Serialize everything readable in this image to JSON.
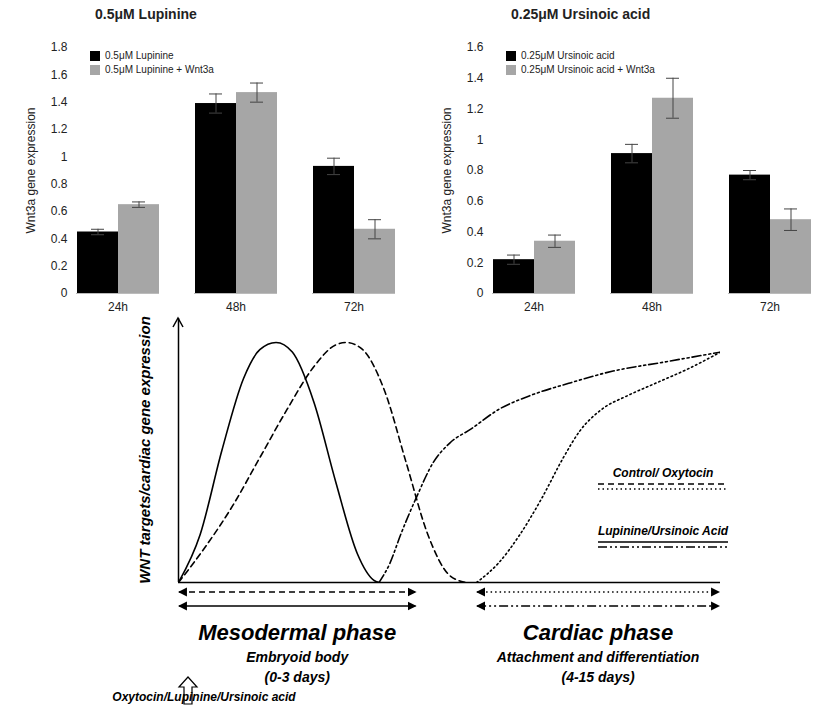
{
  "chart_data": [
    {
      "type": "bar",
      "title": "0.5μM Lupinine",
      "y_label": "Wnt3a gene expression",
      "categories": [
        "24h",
        "48h",
        "72h"
      ],
      "series": [
        {
          "name": "0.5μM Lupinine",
          "color": "#000000",
          "values": [
            0.45,
            1.39,
            0.93
          ],
          "errors": [
            0.02,
            0.07,
            0.06
          ]
        },
        {
          "name": "0.5μM Lupinine + Wnt3a",
          "color": "#a6a6a6",
          "values": [
            0.65,
            1.47,
            0.47
          ],
          "errors": [
            0.02,
            0.07,
            0.07
          ]
        }
      ],
      "ylim": [
        0,
        1.8
      ],
      "yticks": [
        0,
        0.2,
        0.4,
        0.6,
        0.8,
        1,
        1.2,
        1.4,
        1.6,
        1.8
      ],
      "grid": false,
      "legend": "top-left"
    },
    {
      "type": "bar",
      "title": "0.25μM Ursinoic acid",
      "y_label": "Wnt3a gene expression",
      "categories": [
        "24h",
        "48h",
        "72h"
      ],
      "series": [
        {
          "name": "0.25μM Ursinoic acid",
          "color": "#000000",
          "values": [
            0.22,
            0.91,
            0.77
          ],
          "errors": [
            0.03,
            0.06,
            0.03
          ]
        },
        {
          "name": "0.25μM Ursinoic acid + Wnt3a",
          "color": "#a6a6a6",
          "values": [
            0.34,
            1.27,
            0.48
          ],
          "errors": [
            0.04,
            0.13,
            0.07
          ]
        }
      ],
      "ylim": [
        0,
        1.6
      ],
      "yticks": [
        0,
        0.2,
        0.4,
        0.6,
        0.8,
        1,
        1.2,
        1.4,
        1.6
      ],
      "grid": false,
      "legend": "top-left"
    },
    {
      "type": "line",
      "y_label": "WNT targets/cardiac gene expression",
      "tick_labels": false,
      "grid": false,
      "legend": "bottom-right",
      "xlim": [
        0,
        100
      ],
      "ylim": [
        0,
        110
      ],
      "series": [
        {
          "name": "Control/ Oxytocin",
          "color": "#000000",
          "line_style": "dashed",
          "x": [
            0,
            5,
            10,
            15,
            20,
            25,
            29,
            31,
            34,
            38,
            42,
            46,
            50,
            53
          ],
          "values": [
            0,
            15,
            32,
            52,
            72,
            90,
            99,
            100,
            97,
            80,
            50,
            20,
            3,
            0
          ]
        },
        {
          "name": "Lupinine/Ursinoic Acid",
          "color": "#000000",
          "line_style": "solid",
          "x": [
            0,
            4,
            8,
            12,
            15,
            18,
            21,
            25,
            29,
            33,
            36,
            37
          ],
          "values": [
            0,
            20,
            55,
            85,
            97,
            100,
            96,
            75,
            42,
            12,
            1,
            0
          ]
        },
        {
          "name": "Control/ Oxytocin",
          "color": "#000000",
          "line_style": "dotted",
          "x": [
            55,
            59,
            63,
            67,
            71,
            74,
            78,
            83,
            88,
            94,
            100
          ],
          "values": [
            0,
            8,
            20,
            35,
            52,
            63,
            72,
            78,
            83,
            89,
            96
          ]
        },
        {
          "name": "Lupinine/Ursinoic Acid",
          "color": "#000000",
          "line_style": "dashdotdot",
          "x": [
            37,
            39,
            41,
            44,
            47,
            50,
            54,
            59,
            65,
            72,
            80,
            90,
            100
          ],
          "values": [
            0,
            8,
            20,
            36,
            50,
            58,
            64,
            72,
            78,
            83,
            88,
            92,
            96
          ]
        }
      ],
      "phases": [
        {
          "name": "Mesodermal phase",
          "lines": [
            "Embryoid body",
            "(0-3 days)"
          ],
          "start": 0,
          "end": 44
        },
        {
          "name": "Cardiac phase",
          "lines": [
            "Attachment and differentiation",
            "(4-15 days)"
          ],
          "start": 55,
          "end": 100
        }
      ],
      "annotations": [
        "Oxytocin/Lupinine/Ursinoic acid"
      ]
    }
  ]
}
